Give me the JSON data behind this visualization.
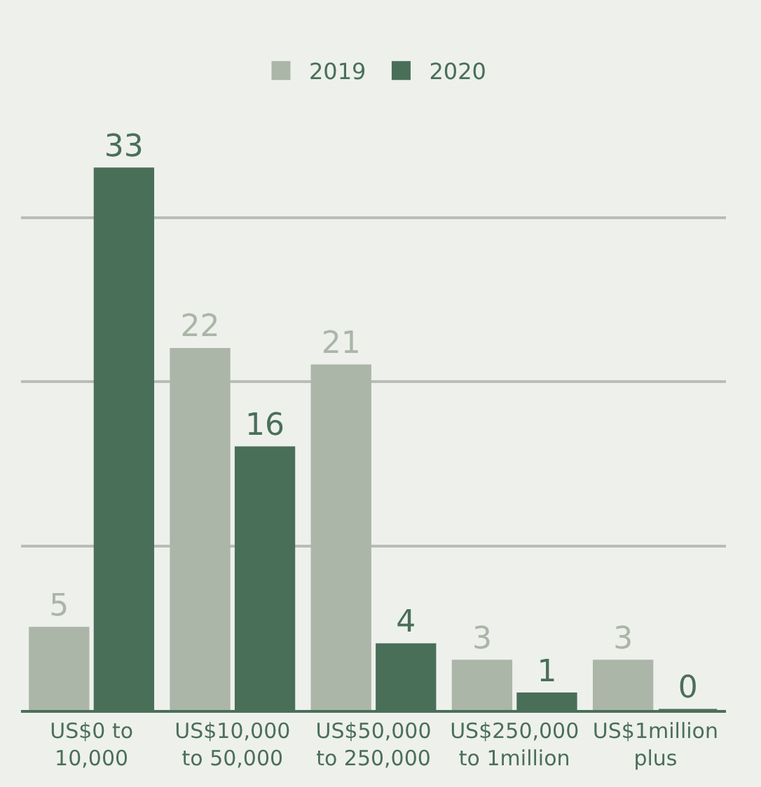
{
  "chart_data": {
    "type": "bar",
    "categories": [
      "US$0 to 10,000",
      "US$10,000 to 50,000",
      "US$50,000 to 250,000",
      "US$250,000 to 1million",
      "US$1million plus"
    ],
    "series": [
      {
        "name": "2019",
        "color": "#abb5a8",
        "values": [
          5,
          22,
          21,
          3,
          3
        ]
      },
      {
        "name": "2020",
        "color": "#4a6f59",
        "values": [
          33,
          16,
          4,
          1,
          0
        ]
      }
    ],
    "grid": "y",
    "legend": "top",
    "tick_labels": "x",
    "data_labels": true
  }
}
